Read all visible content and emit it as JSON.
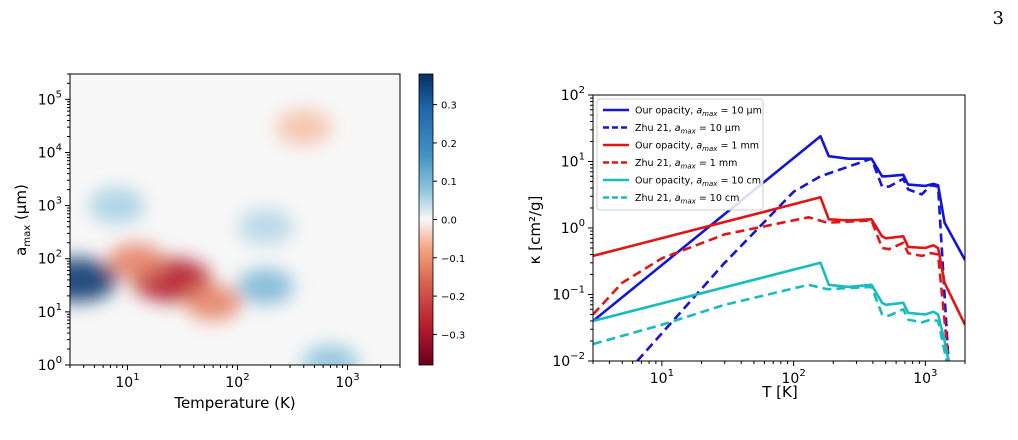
{
  "page": {
    "number": "3"
  },
  "colors": {
    "heatmap_positive": "#08306b",
    "heatmap_zero": "#f7f7f7",
    "heatmap_negative": "#67001f",
    "blue": "#1515d8",
    "red": "#e01515",
    "cyan": "#19bcbc"
  },
  "chart_data": [
    {
      "type": "heatmap",
      "title": "",
      "xlabel": "Temperature (K)",
      "ylabel": "a_max (μm)",
      "xscale": "log",
      "yscale": "log",
      "xlim": [
        3,
        3000
      ],
      "ylim": [
        1,
        300000
      ],
      "x_ticks": [
        {
          "value": 10,
          "base": "10",
          "exp": "1"
        },
        {
          "value": 100,
          "base": "10",
          "exp": "2"
        },
        {
          "value": 1000,
          "base": "10",
          "exp": "3"
        }
      ],
      "y_ticks": [
        {
          "value": 1,
          "base": "10",
          "exp": "0"
        },
        {
          "value": 10,
          "base": "10",
          "exp": "1"
        },
        {
          "value": 100,
          "base": "10",
          "exp": "2"
        },
        {
          "value": 1000,
          "base": "10",
          "exp": "3"
        },
        {
          "value": 10000,
          "base": "10",
          "exp": "4"
        },
        {
          "value": 100000,
          "base": "10",
          "exp": "5"
        }
      ],
      "colorbar": {
        "colormap": "RdBu",
        "range": [
          -0.38,
          0.38
        ],
        "ticks": [
          {
            "value": 0.3,
            "label": "0.3"
          },
          {
            "value": 0.2,
            "label": "0.2"
          },
          {
            "value": 0.1,
            "label": "0.1"
          },
          {
            "value": 0.0,
            "label": "0.0"
          },
          {
            "value": -0.1,
            "label": "−0.1"
          },
          {
            "value": -0.2,
            "label": "−0.2"
          },
          {
            "value": -0.3,
            "label": "−0.3"
          }
        ]
      },
      "features": [
        {
          "T": 3.5,
          "a": 40,
          "value": 0.36
        },
        {
          "T": 25,
          "a": 40,
          "value": -0.28
        },
        {
          "T": 12,
          "a": 90,
          "value": -0.12
        },
        {
          "T": 60,
          "a": 15,
          "value": -0.12
        },
        {
          "T": 180,
          "a": 30,
          "value": 0.1
        },
        {
          "T": 180,
          "a": 400,
          "value": 0.05
        },
        {
          "T": 400,
          "a": 30000,
          "value": -0.05
        },
        {
          "T": 700,
          "a": 1.1,
          "value": 0.08
        },
        {
          "T": 8,
          "a": 1000,
          "value": 0.06
        }
      ]
    },
    {
      "type": "line",
      "title": "",
      "xlabel": "T [K]",
      "ylabel": "κ [cm²/g]",
      "xscale": "log",
      "yscale": "log",
      "xlim": [
        3,
        2000
      ],
      "ylim": [
        0.01,
        100
      ],
      "x_ticks": [
        {
          "value": 10,
          "base": "10",
          "exp": "1"
        },
        {
          "value": 100,
          "base": "10",
          "exp": "2"
        },
        {
          "value": 1000,
          "base": "10",
          "exp": "3"
        }
      ],
      "y_ticks": [
        {
          "value": 0.01,
          "base": "10",
          "exp": "−2"
        },
        {
          "value": 0.1,
          "base": "10",
          "exp": "−1"
        },
        {
          "value": 1,
          "base": "10",
          "exp": "0"
        },
        {
          "value": 10,
          "base": "10",
          "exp": "1"
        },
        {
          "value": 100,
          "base": "10",
          "exp": "2"
        }
      ],
      "legend_position": "top-left",
      "series": [
        {
          "name": "Our opacity, a_max = 10 μm",
          "legend_prefix": "Our opacity, ",
          "legend_suffix": " = 10 μm",
          "color": "blue",
          "dash": "solid",
          "x": [
            3,
            160,
            185,
            260,
            390,
            470,
            500,
            680,
            740,
            1000,
            1150,
            1250,
            1400,
            2000
          ],
          "y": [
            0.04,
            24,
            12,
            11,
            11,
            6,
            6,
            6.3,
            4.5,
            4.3,
            4.6,
            4.4,
            1.2,
            0.33
          ]
        },
        {
          "name": "Zhu 21, a_max = 10 μm",
          "legend_prefix": "Zhu 21, ",
          "legend_suffix": " = 10 μm",
          "color": "blue",
          "dash": "dashed",
          "x": [
            6.5,
            30,
            100,
            160,
            390,
            470,
            530,
            680,
            740,
            940,
            1100,
            1250,
            1500
          ],
          "y": [
            0.01,
            0.3,
            3.5,
            6,
            11,
            4.2,
            4.2,
            5.5,
            3.8,
            3.2,
            4.4,
            4.2,
            0.01
          ]
        },
        {
          "name": "Our opacity, a_max = 1 mm",
          "legend_prefix": "Our opacity, ",
          "legend_suffix": " = 1 mm",
          "color": "red",
          "dash": "solid",
          "x": [
            3,
            160,
            185,
            260,
            390,
            470,
            500,
            680,
            740,
            1000,
            1150,
            1250,
            1400,
            2000
          ],
          "y": [
            0.38,
            2.9,
            1.35,
            1.3,
            1.35,
            0.75,
            0.7,
            0.75,
            0.52,
            0.5,
            0.55,
            0.5,
            0.15,
            0.035
          ]
        },
        {
          "name": "Zhu 21, a_max = 1 mm",
          "legend_prefix": "Zhu 21, ",
          "legend_suffix": " = 1 mm",
          "color": "red",
          "dash": "dashed",
          "x": [
            3,
            5,
            10,
            30,
            130,
            180,
            260,
            390,
            470,
            530,
            680,
            740,
            940,
            1100,
            1250,
            1500
          ],
          "y": [
            0.05,
            0.15,
            0.35,
            0.8,
            1.45,
            1.2,
            1.25,
            1.3,
            0.5,
            0.48,
            0.6,
            0.42,
            0.38,
            0.42,
            0.4,
            0.01
          ]
        },
        {
          "name": "Our opacity, a_max = 10 cm",
          "legend_prefix": "Our opacity, ",
          "legend_suffix": " = 10 cm",
          "color": "cyan",
          "dash": "solid",
          "x": [
            3,
            160,
            185,
            260,
            390,
            470,
            500,
            680,
            740,
            1000,
            1150,
            1250,
            1400,
            1500
          ],
          "y": [
            0.04,
            0.3,
            0.14,
            0.13,
            0.14,
            0.075,
            0.07,
            0.075,
            0.053,
            0.05,
            0.055,
            0.05,
            0.02,
            0.01
          ]
        },
        {
          "name": "Zhu 21, a_max = 10 cm",
          "legend_prefix": "Zhu 21, ",
          "legend_suffix": " = 10 cm",
          "color": "cyan",
          "dash": "dashed",
          "x": [
            3,
            10,
            30,
            130,
            180,
            260,
            390,
            470,
            530,
            680,
            740,
            940,
            1100,
            1250,
            1450
          ],
          "y": [
            0.018,
            0.035,
            0.07,
            0.14,
            0.12,
            0.125,
            0.13,
            0.05,
            0.048,
            0.06,
            0.042,
            0.038,
            0.042,
            0.04,
            0.01
          ]
        }
      ]
    }
  ]
}
